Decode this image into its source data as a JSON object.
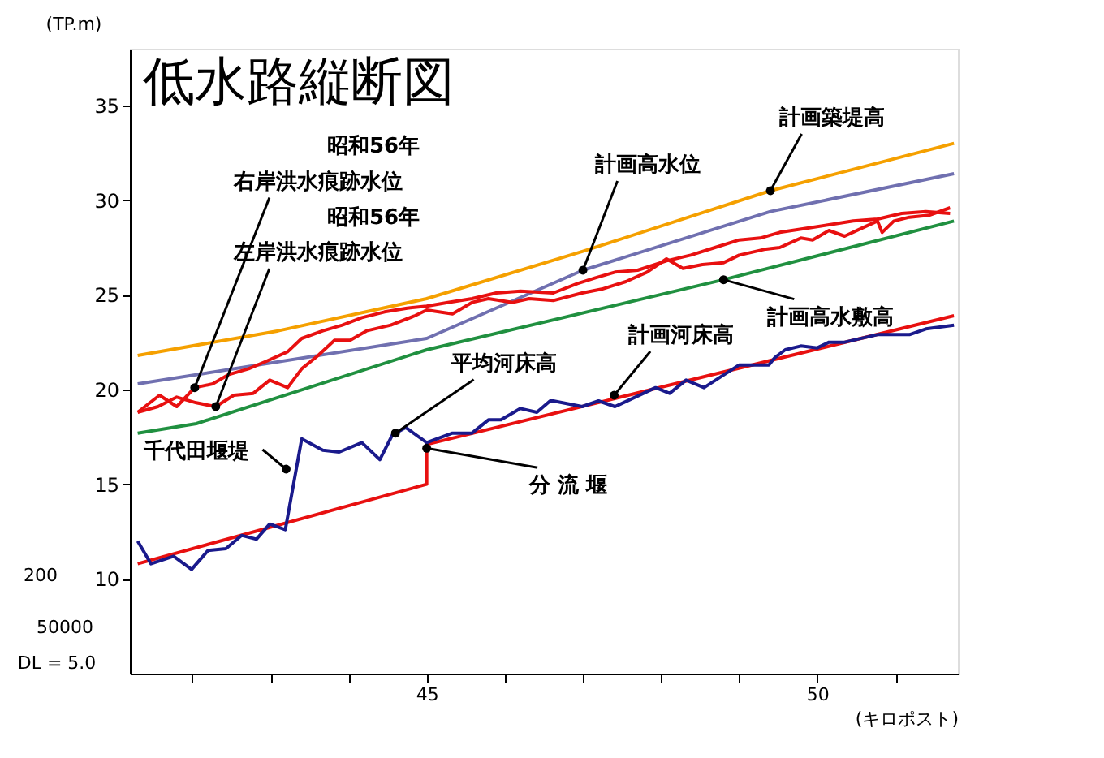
{
  "chart_data": {
    "type": "line",
    "title": "低水路縦断図",
    "ylabel": "(TP.m)",
    "xlabel": "(キロポスト)",
    "xlim": [
      41.2,
      51.8
    ],
    "ylim": [
      5,
      38
    ],
    "xticks": [
      {
        "value": 42,
        "label": null
      },
      {
        "value": 43,
        "label": null
      },
      {
        "value": 44,
        "label": null
      },
      45,
      {
        "value": 46,
        "label": null
      },
      {
        "value": 47,
        "label": null
      },
      {
        "value": 48,
        "label": null
      },
      {
        "value": 49,
        "label": null
      },
      50,
      {
        "value": 51,
        "label": null
      }
    ],
    "yticks": [
      10,
      15,
      20,
      25,
      30,
      35
    ],
    "grid": false,
    "legend": false,
    "marker": "none",
    "line_style": "solid",
    "series": [
      {
        "color": "#f5a000",
        "x": [
          41.3,
          43.1,
          45.0,
          47.0,
          49.4,
          51.75
        ],
        "values": [
          21.8,
          23.1,
          24.8,
          27.3,
          30.5,
          33.0
        ]
      },
      {
        "color": "#7070b0",
        "x": [
          41.3,
          45.0,
          47.0,
          49.4,
          51.75
        ],
        "values": [
          20.3,
          22.7,
          26.3,
          29.4,
          31.4
        ]
      },
      {
        "color": "#209040",
        "x": [
          41.3,
          42.05,
          45.0,
          48.8,
          51.75
        ],
        "values": [
          17.7,
          18.2,
          22.1,
          25.8,
          28.9
        ]
      },
      {
        "color": "#e81010",
        "x": [
          41.3,
          41.58,
          41.8,
          42.03,
          42.26,
          42.47,
          42.72,
          42.95,
          43.22,
          43.4,
          43.67,
          43.92,
          44.17,
          44.46,
          44.75,
          45.0,
          45.27,
          45.58,
          45.89,
          46.2,
          46.62,
          46.93,
          47.16,
          47.41,
          47.7,
          48.07,
          48.38,
          48.69,
          49.0,
          49.27,
          49.52,
          49.83,
          50.15,
          50.46,
          50.77,
          51.08,
          51.39,
          51.7
        ],
        "values": [
          18.8,
          19.7,
          19.1,
          20.1,
          20.3,
          20.8,
          21.1,
          21.5,
          22.0,
          22.7,
          23.1,
          23.4,
          23.8,
          24.1,
          24.3,
          24.4,
          24.6,
          24.8,
          25.1,
          25.2,
          25.1,
          25.6,
          25.9,
          26.2,
          26.3,
          26.8,
          27.1,
          27.5,
          27.9,
          28.0,
          28.3,
          28.5,
          28.7,
          28.9,
          29.0,
          29.3,
          29.4,
          29.3
        ]
      },
      {
        "color": "#e81010",
        "x": [
          41.3,
          41.56,
          41.8,
          42.05,
          42.3,
          42.53,
          42.78,
          42.99,
          43.22,
          43.4,
          43.61,
          43.82,
          44.02,
          44.23,
          44.54,
          44.85,
          45.0,
          45.33,
          45.58,
          45.79,
          46.1,
          46.31,
          46.62,
          46.99,
          47.24,
          47.55,
          47.82,
          48.07,
          48.28,
          48.53,
          48.8,
          49.0,
          49.32,
          49.52,
          49.79,
          49.94,
          50.15,
          50.35,
          50.56,
          50.77,
          50.83,
          50.98,
          51.18,
          51.43,
          51.7
        ],
        "values": [
          18.8,
          19.1,
          19.6,
          19.3,
          19.1,
          19.7,
          19.8,
          20.5,
          20.1,
          21.1,
          21.8,
          22.6,
          22.6,
          23.1,
          23.4,
          23.9,
          24.2,
          24.0,
          24.6,
          24.8,
          24.6,
          24.8,
          24.7,
          25.1,
          25.3,
          25.7,
          26.2,
          26.9,
          26.4,
          26.6,
          26.7,
          27.1,
          27.4,
          27.5,
          28.0,
          27.9,
          28.4,
          28.1,
          28.5,
          28.9,
          28.3,
          28.9,
          29.1,
          29.2,
          29.6
        ]
      },
      {
        "color": "#e81010",
        "x": [
          41.3,
          45.0,
          45.0,
          51.75
        ],
        "values": [
          10.8,
          15.0,
          17.1,
          23.9
        ]
      },
      {
        "color": "#1a1a8c",
        "x": [
          41.3,
          41.47,
          41.76,
          41.99,
          42.2,
          42.43,
          42.63,
          42.82,
          42.99,
          43.19,
          43.4,
          43.67,
          43.88,
          44.17,
          44.4,
          44.56,
          44.73,
          45.0,
          45.33,
          45.58,
          45.79,
          45.95,
          46.2,
          46.41,
          46.58,
          46.62,
          46.99,
          47.2,
          47.41,
          47.93,
          48.11,
          48.32,
          48.55,
          49.0,
          49.38,
          49.46,
          49.59,
          49.79,
          50.0,
          50.15,
          50.35,
          50.77,
          51.18,
          51.39,
          51.75
        ],
        "values": [
          12.0,
          10.8,
          11.2,
          10.5,
          11.5,
          11.6,
          12.3,
          12.1,
          12.9,
          12.6,
          17.4,
          16.8,
          16.7,
          17.2,
          16.3,
          17.6,
          18.0,
          17.2,
          17.7,
          17.7,
          18.4,
          18.4,
          19.0,
          18.8,
          19.4,
          19.4,
          19.1,
          19.4,
          19.1,
          20.1,
          19.8,
          20.5,
          20.1,
          21.3,
          21.3,
          21.7,
          22.1,
          22.3,
          22.2,
          22.5,
          22.5,
          22.9,
          22.9,
          23.2,
          23.4
        ]
      }
    ],
    "annotations": [
      {
        "text": "右岸洪水痕跡水位",
        "x": 42.03,
        "y": 20.1
      },
      {
        "text": "左岸洪水痕跡水位",
        "x": 42.3,
        "y": 19.1
      },
      {
        "text": "計画高水位",
        "x": 47.0,
        "y": 26.3
      },
      {
        "text": "計画築堤高",
        "x": 49.4,
        "y": 30.5
      },
      {
        "text": "計画高水敷高",
        "x": 48.8,
        "y": 25.8
      },
      {
        "text": "計画河床高",
        "x": 47.4,
        "y": 19.7
      },
      {
        "text": "平均河床高",
        "x": 44.6,
        "y": 17.7
      },
      {
        "text": "千代田堰堤",
        "x": 43.2,
        "y": 15.8
      },
      {
        "text": "分 流 堰",
        "x": 45.0,
        "y": 16.9
      },
      "昭和56年",
      "昭和56年",
      "200",
      "50000",
      "DL = 5.0"
    ]
  }
}
